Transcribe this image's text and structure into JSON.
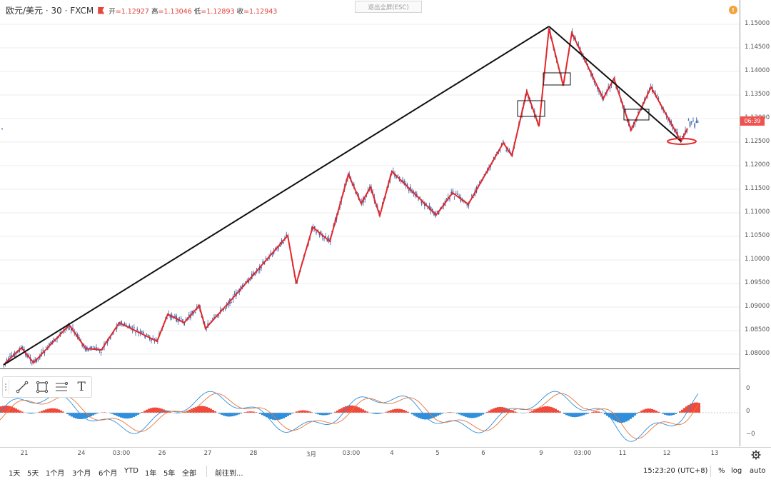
{
  "header": {
    "symbol": "欧元/美元 · 30 · FXCM",
    "open_label": "开",
    "open": "=1.12927",
    "high_label": "高",
    "high": "=1.13046",
    "low_label": "低",
    "low": "=1.12893",
    "close_label": "收",
    "close": "=1.12943",
    "exit_fullscreen": "退出全屏(ESC)",
    "alert_icon": "!"
  },
  "price_axis": {
    "ticks": [
      "1.15000",
      "1.14500",
      "1.14000",
      "1.13500",
      "1.13000",
      "1.12500",
      "1.12000",
      "1.11500",
      "1.11000",
      "1.10500",
      "1.10000",
      "1.09500",
      "1.09000",
      "1.08500",
      "1.08000"
    ],
    "countdown": "06:39"
  },
  "oscillator_axis": {
    "ticks": [
      "0",
      "0",
      "−0"
    ]
  },
  "time_axis": {
    "ticks": [
      "21",
      "24",
      "03:00",
      "26",
      "27",
      "28",
      "3月",
      "03:00",
      "4",
      "5",
      "6",
      "9",
      "03:00",
      "11",
      "12",
      "13"
    ]
  },
  "toolbar": {
    "tools": [
      "trend-line",
      "rectangle",
      "fib",
      "text"
    ],
    "text_tool_label": "T"
  },
  "bottom_bar": {
    "ranges": [
      "1天",
      "5天",
      "1个月",
      "3个月",
      "6个月",
      "YTD",
      "1年",
      "5年",
      "全部"
    ],
    "goto": "前往到...",
    "clock": "15:23:20 (UTC+8)",
    "percent": "%",
    "log": "log",
    "auto": "auto"
  },
  "colors": {
    "candle": "#3a5fa6",
    "zigzag": "#e5282a",
    "trend": "#111111",
    "hist_up": "#ef4a3c",
    "hist_down": "#2f8fdd",
    "macd": "#2f8fdd",
    "signal": "#e6753a"
  }
}
